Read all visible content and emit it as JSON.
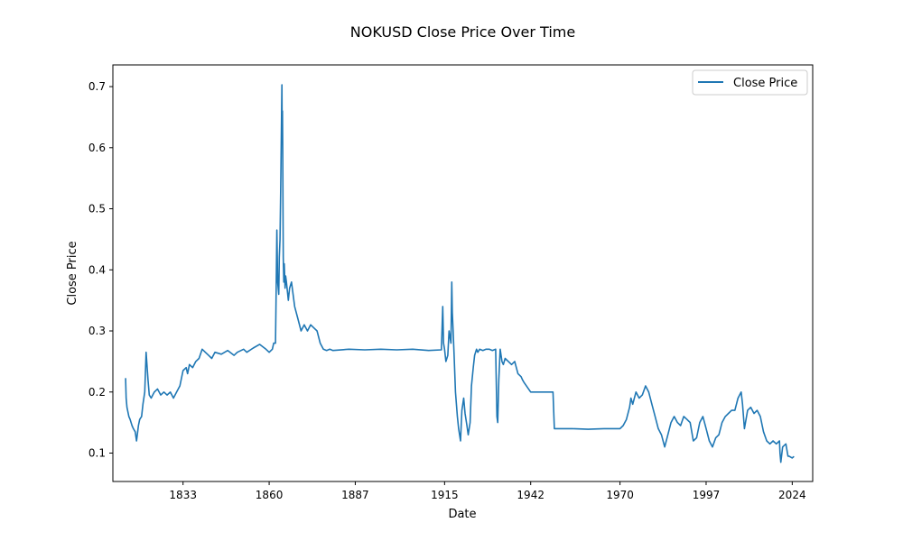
{
  "chart_data": {
    "type": "line",
    "title": "NOKUSD Close Price Over Time",
    "xlabel": "Date",
    "ylabel": "Close Price",
    "x_ticks": [
      "1833",
      "1860",
      "1887",
      "1915",
      "1942",
      "1970",
      "1997",
      "2024"
    ],
    "y_ticks": [
      "0.1",
      "0.2",
      "0.3",
      "0.4",
      "0.5",
      "0.6",
      "0.7"
    ],
    "xlim": [
      "1811-01-01",
      "2030-06-01"
    ],
    "ylim": [
      0.0535,
      0.7355
    ],
    "grid": false,
    "legend_position": "top-right",
    "series": [
      {
        "name": "Close Price",
        "color": "#1f77b4",
        "x": [
          "1815-01-01",
          "1815-03-01",
          "1815-06-01",
          "1816-01-01",
          "1816-06-01",
          "1817-01-01",
          "1817-06-01",
          "1818-01-01",
          "1818-06-01",
          "1819-01-01",
          "1819-06-01",
          "1820-01-01",
          "1820-06-01",
          "1821-01-01",
          "1821-06-01",
          "1822-01-01",
          "1822-06-01",
          "1823-01-01",
          "1824-01-01",
          "1825-01-01",
          "1826-01-01",
          "1827-01-01",
          "1828-01-01",
          "1829-01-01",
          "1830-01-01",
          "1831-01-01",
          "1832-01-01",
          "1833-01-01",
          "1834-01-01",
          "1834-06-01",
          "1835-01-01",
          "1836-01-01",
          "1837-01-01",
          "1838-01-01",
          "1839-01-01",
          "1840-01-01",
          "1841-01-01",
          "1842-01-01",
          "1843-01-01",
          "1845-01-01",
          "1847-01-01",
          "1849-01-01",
          "1850-01-01",
          "1852-01-01",
          "1853-01-01",
          "1855-01-01",
          "1857-01-01",
          "1859-01-01",
          "1860-01-01",
          "1861-01-01",
          "1861-06-01",
          "1862-01-01",
          "1862-03-01",
          "1862-06-01",
          "1862-09-01",
          "1863-01-01",
          "1863-03-01",
          "1863-06-01",
          "1863-09-01",
          "1864-01-01",
          "1864-02-01",
          "1864-03-01",
          "1864-04-01",
          "1864-05-01",
          "1864-06-01",
          "1864-08-01",
          "1864-10-01",
          "1865-01-01",
          "1865-03-01",
          "1865-06-01",
          "1866-01-01",
          "1866-06-01",
          "1867-01-01",
          "1868-01-01",
          "1869-01-01",
          "1870-01-01",
          "1871-01-01",
          "1872-01-01",
          "1873-01-01",
          "1874-01-01",
          "1875-01-01",
          "1876-01-01",
          "1877-01-01",
          "1878-01-01",
          "1879-01-01",
          "1880-01-01",
          "1885-01-01",
          "1890-01-01",
          "1895-01-01",
          "1900-01-01",
          "1905-01-01",
          "1910-01-01",
          "1914-01-01",
          "1914-06-01",
          "1914-09-01",
          "1915-01-01",
          "1915-06-01",
          "1916-01-01",
          "1916-06-01",
          "1917-01-01",
          "1917-04-01",
          "1917-06-01",
          "1917-09-01",
          "1918-01-01",
          "1918-06-01",
          "1919-01-01",
          "1919-06-01",
          "1920-01-01",
          "1920-06-01",
          "1921-01-01",
          "1921-06-01",
          "1922-01-01",
          "1922-06-01",
          "1923-01-01",
          "1923-06-01",
          "1924-01-01",
          "1924-06-01",
          "1925-01-01",
          "1925-06-01",
          "1926-01-01",
          "1927-01-01",
          "1928-01-01",
          "1929-01-01",
          "1930-01-01",
          "1931-01-01",
          "1931-06-01",
          "1931-09-01",
          "1932-01-01",
          "1932-06-01",
          "1933-01-01",
          "1933-06-01",
          "1934-01-01",
          "1935-01-01",
          "1936-01-01",
          "1937-01-01",
          "1938-01-01",
          "1939-01-01",
          "1939-06-01",
          "1940-01-01",
          "1942-01-01",
          "1944-01-01",
          "1946-01-01",
          "1947-01-01",
          "1949-01-01",
          "1949-06-01",
          "1950-01-01",
          "1955-01-01",
          "1960-01-01",
          "1965-01-01",
          "1970-01-01",
          "1971-01-01",
          "1972-01-01",
          "1973-01-01",
          "1973-06-01",
          "1974-01-01",
          "1975-01-01",
          "1976-01-01",
          "1977-01-01",
          "1978-01-01",
          "1979-01-01",
          "1980-01-01",
          "1981-01-01",
          "1982-01-01",
          "1983-01-01",
          "1984-01-01",
          "1985-01-01",
          "1986-01-01",
          "1987-01-01",
          "1988-01-01",
          "1989-01-01",
          "1990-01-01",
          "1991-01-01",
          "1992-01-01",
          "1993-01-01",
          "1994-01-01",
          "1995-01-01",
          "1996-01-01",
          "1997-01-01",
          "1998-01-01",
          "1999-01-01",
          "2000-01-01",
          "2001-01-01",
          "2002-01-01",
          "2003-01-01",
          "2004-01-01",
          "2005-01-01",
          "2006-01-01",
          "2007-01-01",
          "2008-01-01",
          "2008-06-01",
          "2009-01-01",
          "2010-01-01",
          "2011-01-01",
          "2012-01-01",
          "2013-01-01",
          "2014-01-01",
          "2015-01-01",
          "2016-01-01",
          "2017-01-01",
          "2018-01-01",
          "2019-01-01",
          "2020-01-01",
          "2020-03-01",
          "2020-06-01",
          "2021-01-01",
          "2022-01-01",
          "2022-09-01",
          "2023-01-01",
          "2024-01-01",
          "2024-06-01"
        ],
        "values": [
          0.222,
          0.19,
          0.175,
          0.16,
          0.155,
          0.145,
          0.14,
          0.135,
          0.12,
          0.145,
          0.155,
          0.16,
          0.18,
          0.2,
          0.265,
          0.22,
          0.195,
          0.19,
          0.2,
          0.205,
          0.195,
          0.2,
          0.195,
          0.2,
          0.19,
          0.2,
          0.21,
          0.235,
          0.24,
          0.23,
          0.245,
          0.24,
          0.25,
          0.255,
          0.27,
          0.265,
          0.26,
          0.255,
          0.265,
          0.262,
          0.268,
          0.26,
          0.265,
          0.27,
          0.265,
          0.272,
          0.278,
          0.27,
          0.265,
          0.27,
          0.28,
          0.28,
          0.35,
          0.465,
          0.38,
          0.36,
          0.42,
          0.45,
          0.55,
          0.703,
          0.62,
          0.66,
          0.6,
          0.5,
          0.42,
          0.38,
          0.41,
          0.37,
          0.39,
          0.38,
          0.35,
          0.37,
          0.38,
          0.34,
          0.32,
          0.3,
          0.31,
          0.3,
          0.31,
          0.305,
          0.3,
          0.28,
          0.27,
          0.268,
          0.27,
          0.268,
          0.27,
          0.269,
          0.27,
          0.269,
          0.27,
          0.268,
          0.269,
          0.34,
          0.28,
          0.27,
          0.25,
          0.26,
          0.3,
          0.28,
          0.38,
          0.33,
          0.3,
          0.26,
          0.2,
          0.16,
          0.14,
          0.12,
          0.17,
          0.19,
          0.165,
          0.145,
          0.13,
          0.15,
          0.21,
          0.24,
          0.26,
          0.27,
          0.265,
          0.27,
          0.268,
          0.27,
          0.27,
          0.268,
          0.27,
          0.16,
          0.15,
          0.22,
          0.27,
          0.25,
          0.245,
          0.255,
          0.25,
          0.245,
          0.25,
          0.23,
          0.225,
          0.22,
          0.215,
          0.2,
          0.2,
          0.2,
          0.2,
          0.2,
          0.14,
          0.14,
          0.14,
          0.139,
          0.14,
          0.14,
          0.145,
          0.155,
          0.175,
          0.19,
          0.18,
          0.2,
          0.19,
          0.195,
          0.21,
          0.2,
          0.18,
          0.16,
          0.14,
          0.13,
          0.11,
          0.13,
          0.15,
          0.16,
          0.15,
          0.145,
          0.16,
          0.155,
          0.15,
          0.12,
          0.125,
          0.15,
          0.16,
          0.14,
          0.12,
          0.11,
          0.125,
          0.13,
          0.15,
          0.16,
          0.165,
          0.17,
          0.17,
          0.19,
          0.2,
          0.18,
          0.14,
          0.17,
          0.175,
          0.165,
          0.17,
          0.16,
          0.135,
          0.12,
          0.115,
          0.12,
          0.115,
          0.12,
          0.1,
          0.085,
          0.11,
          0.115,
          0.095,
          0.095,
          0.092,
          0.094
        ]
      }
    ]
  }
}
